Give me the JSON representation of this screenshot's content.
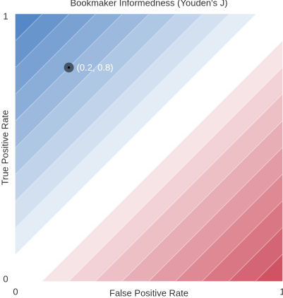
{
  "chart_data": {
    "type": "contour",
    "title": "Bookmaker Informedness (Youden's J)",
    "xlabel": "False Positive Rate",
    "ylabel": "True Positive Rate",
    "xlim": [
      0,
      1
    ],
    "ylim": [
      0,
      1
    ],
    "xticks": [
      0,
      1
    ],
    "yticks": [
      0,
      1
    ],
    "levels": [
      -1,
      -0.9,
      -0.8,
      -0.7,
      -0.6,
      -0.5,
      -0.4,
      -0.3,
      -0.2,
      -0.1,
      0.1,
      0.2,
      0.3,
      0.4,
      0.5,
      0.6,
      0.7,
      0.8,
      0.9,
      1
    ],
    "colormap": [
      "#cc4a5b",
      "#ffffff",
      "#4c82c3"
    ],
    "points": [
      {
        "x": 0.2,
        "y": 0.8,
        "label": "(0.2, 0.8)",
        "color": "#3d4a5a"
      }
    ]
  }
}
